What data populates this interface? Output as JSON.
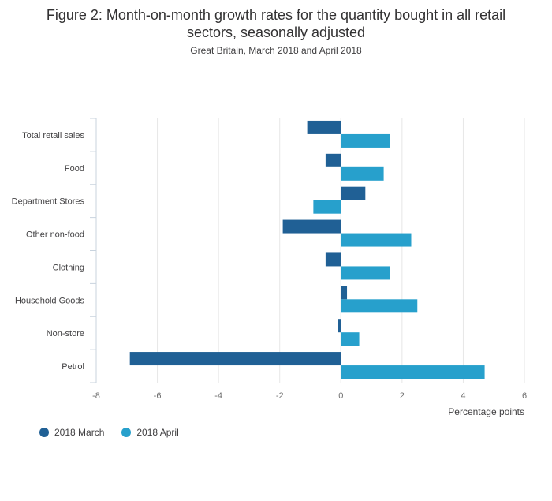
{
  "header": {
    "title_line1": "Figure 2: Month-on-month growth rates for the quantity bought in all retail",
    "title_line2": "sectors, seasonally adjusted",
    "subtitle": "Great Britain, March 2018 and April 2018"
  },
  "chart_data": {
    "type": "bar",
    "orientation": "horizontal",
    "categories": [
      "Total retail sales",
      "Food",
      "Department Stores",
      "Other non-food",
      "Clothing",
      "Household Goods",
      "Non-store",
      "Petrol"
    ],
    "series": [
      {
        "name": "2018 March",
        "color": "#206095",
        "values": [
          -1.1,
          -0.5,
          0.8,
          -1.9,
          -0.5,
          0.2,
          -0.1,
          -6.9
        ]
      },
      {
        "name": "2018 April",
        "color": "#27a0cc",
        "values": [
          1.6,
          1.4,
          -0.9,
          2.3,
          1.6,
          2.5,
          0.6,
          4.7
        ]
      }
    ],
    "xlabel": "Percentage points",
    "xlim": [
      -8,
      6
    ],
    "xticks": [
      -8,
      -6,
      -4,
      -2,
      0,
      2,
      4,
      6
    ],
    "grid": true,
    "legend_position": "bottom-left"
  }
}
